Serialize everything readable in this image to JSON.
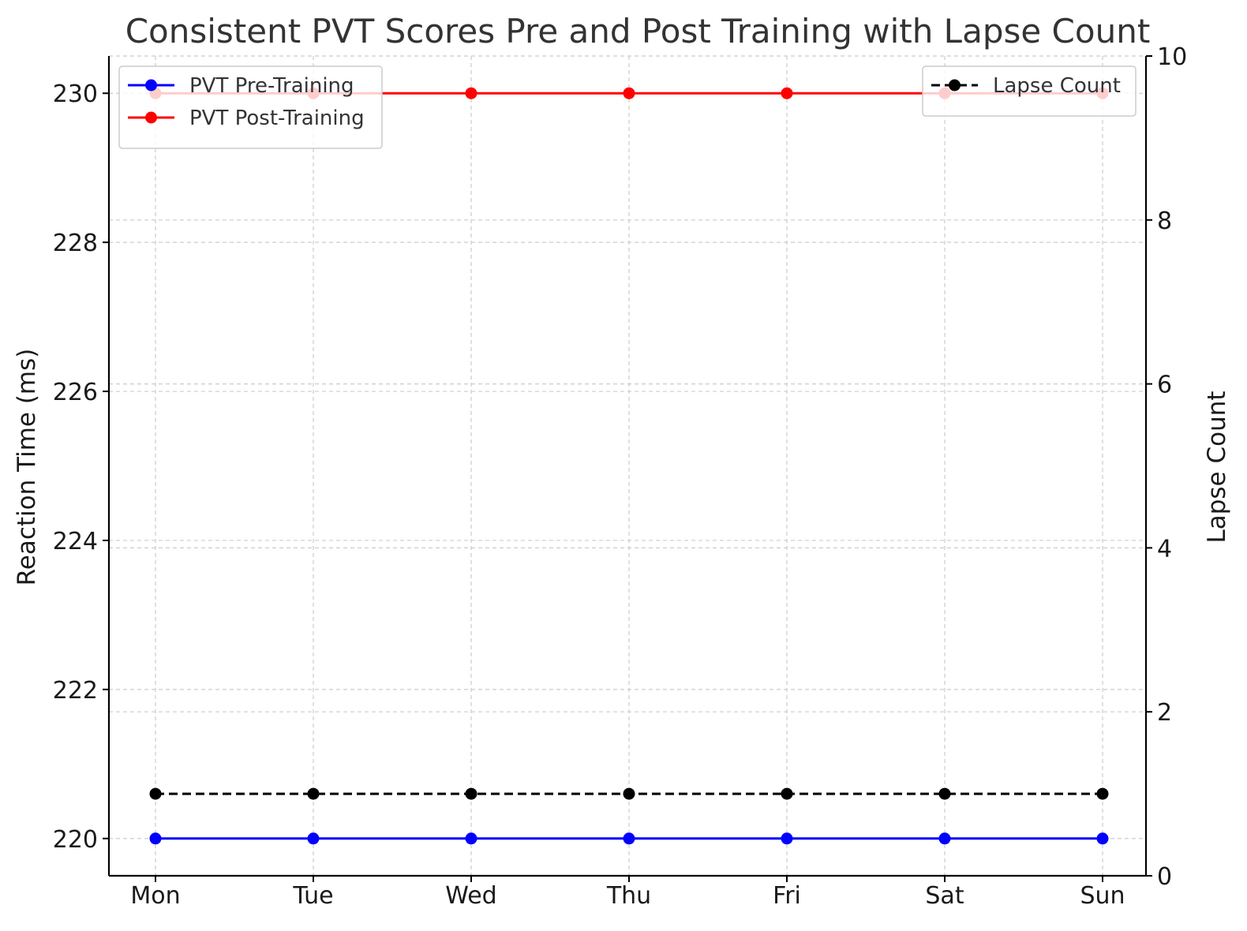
{
  "chart_data": {
    "type": "line",
    "title": "Consistent PVT Scores Pre and Post Training with Lapse Count",
    "xlabel": "",
    "ylabel": "Reaction Time (ms)",
    "y2label": "Lapse Count",
    "categories": [
      "Mon",
      "Tue",
      "Wed",
      "Thu",
      "Fri",
      "Sat",
      "Sun"
    ],
    "ylim": [
      219.5,
      230.5
    ],
    "y2lim": [
      0,
      10
    ],
    "yticks": [
      220,
      222,
      224,
      226,
      228,
      230
    ],
    "y2ticks": [
      0,
      2,
      4,
      6,
      8,
      10
    ],
    "grid": true,
    "series": [
      {
        "name": "PVT Pre-Training",
        "axis": "left",
        "color": "#0000ff",
        "style": "solid",
        "values": [
          220,
          220,
          220,
          220,
          220,
          220,
          220
        ]
      },
      {
        "name": "PVT Post-Training",
        "axis": "left",
        "color": "#ff0000",
        "style": "solid",
        "values": [
          230,
          230,
          230,
          230,
          230,
          230,
          230
        ]
      },
      {
        "name": "Lapse Count",
        "axis": "right",
        "color": "#000000",
        "style": "dashed",
        "values": [
          1,
          1,
          1,
          1,
          1,
          1,
          1
        ]
      }
    ],
    "legends": [
      {
        "placement": "top-left",
        "entries": [
          "PVT Pre-Training",
          "PVT Post-Training"
        ]
      },
      {
        "placement": "top-right",
        "entries": [
          "Lapse Count"
        ]
      }
    ]
  }
}
